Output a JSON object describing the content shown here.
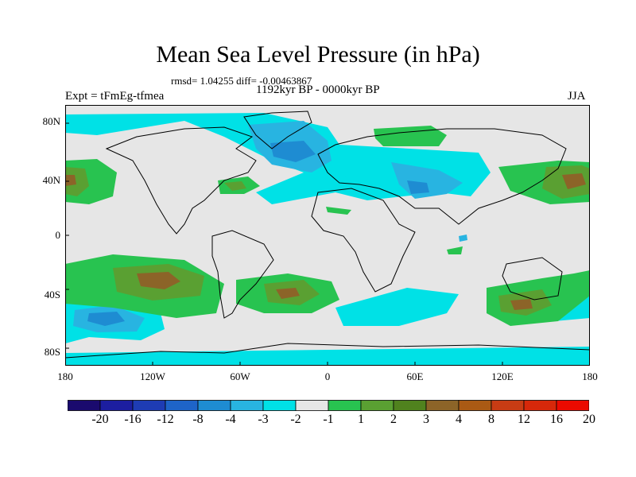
{
  "title": "Mean Sea Level Pressure (in hPa)",
  "stats": "rmsd= 1.04255 diff= -0.00463867",
  "expt": "Expt = tFmEg-tfmea",
  "period": "1192kyr BP - 0000kyr BP",
  "season": "JJA",
  "lat_labels": [
    "80N",
    "40N",
    "0",
    "40S",
    "80S"
  ],
  "lon_labels": [
    "180",
    "120W",
    "60W",
    "0",
    "60E",
    "120E",
    "180"
  ],
  "colorbar": {
    "colors": [
      "#1a0a6e",
      "#1c1ea0",
      "#1e3cb4",
      "#1e64c8",
      "#1e8cd2",
      "#28b4e1",
      "#00e1e6",
      "#e6e6e6",
      "#28c350",
      "#5aa032",
      "#50821e",
      "#8c6428",
      "#aa5a14",
      "#c83c14",
      "#d7280a",
      "#eb0a00"
    ],
    "labels": [
      "-20",
      "-16",
      "-12",
      "-8",
      "-4",
      "-3",
      "-2",
      "-1",
      "1",
      "2",
      "3",
      "4",
      "8",
      "12",
      "16",
      "20"
    ]
  },
  "field_colors": {
    "neutral": "#e6e6e6",
    "neg1": "#00e1e6",
    "neg2": "#28b4e1",
    "neg3": "#1e8cd2",
    "pos1": "#28c350",
    "pos2": "#5aa032",
    "pos3": "#8c6428"
  }
}
